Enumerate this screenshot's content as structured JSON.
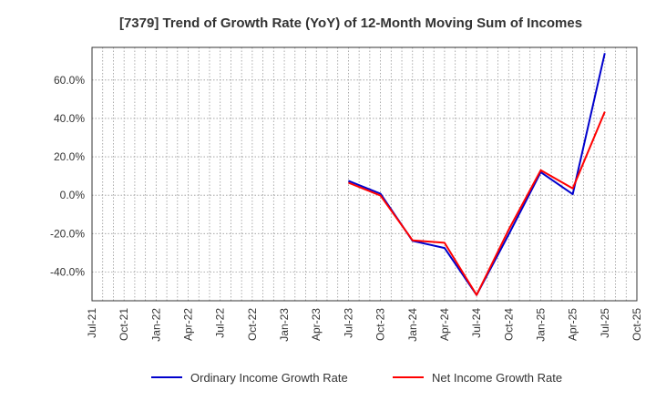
{
  "chart_data": {
    "type": "line",
    "title": "[7379]  Trend of Growth Rate (YoY) of 12-Month Moving Sum of Incomes",
    "xlabel": "",
    "ylabel": "",
    "x_ticks": [
      "Jul-21",
      "Oct-21",
      "Jan-22",
      "Apr-22",
      "Jul-22",
      "Oct-22",
      "Jan-23",
      "Apr-23",
      "Jul-23",
      "Oct-23",
      "Jan-24",
      "Apr-24",
      "Jul-24",
      "Oct-24",
      "Jan-25",
      "Apr-25",
      "Jul-25",
      "Oct-25"
    ],
    "y_ticks": [
      "-40.0%",
      "-20.0%",
      "0.0%",
      "20.0%",
      "40.0%",
      "60.0%"
    ],
    "y_tick_values": [
      -40,
      -20,
      0,
      20,
      40,
      60
    ],
    "ylim": [
      -55,
      77
    ],
    "xlim": [
      "2021-07",
      "2025-10"
    ],
    "grid": true,
    "legend_position": "bottom",
    "x": [
      "2023-07",
      "2023-10",
      "2024-01",
      "2024-04",
      "2024-07",
      "2024-10",
      "2025-01",
      "2025-04",
      "2025-07"
    ],
    "series": [
      {
        "name": "Ordinary Income Growth Rate",
        "color": "#0000cc",
        "x": [
          "2023-07",
          "2023-08",
          "2023-09",
          "2023-10",
          "2023-11",
          "2023-12",
          "2024-01",
          "2024-02",
          "2024-03",
          "2024-04",
          "2024-05",
          "2024-06",
          "2024-07",
          "2024-08",
          "2024-09",
          "2024-10",
          "2024-11",
          "2024-12",
          "2025-01",
          "2025-02",
          "2025-03",
          "2025-04",
          "2025-05",
          "2025-06",
          "2025-07"
        ],
        "values": [
          7.5,
          null,
          null,
          0.8,
          null,
          null,
          -23.8,
          null,
          null,
          -27.5,
          null,
          null,
          -52.0,
          null,
          null,
          -20.5,
          null,
          null,
          12.0,
          null,
          null,
          0.5,
          null,
          null,
          74.0
        ]
      },
      {
        "name": "Net Income Growth Rate",
        "color": "#ff0000",
        "x": [
          "2023-07",
          "2023-08",
          "2023-09",
          "2023-10",
          "2023-11",
          "2023-12",
          "2024-01",
          "2024-02",
          "2024-03",
          "2024-04",
          "2024-05",
          "2024-06",
          "2024-07",
          "2024-08",
          "2024-09",
          "2024-10",
          "2024-11",
          "2024-12",
          "2025-01",
          "2025-02",
          "2025-03",
          "2025-04",
          "2025-05",
          "2025-06",
          "2025-07"
        ],
        "values": [
          6.5,
          null,
          null,
          -0.2,
          null,
          null,
          -23.5,
          null,
          null,
          -24.8,
          null,
          null,
          -52.0,
          null,
          null,
          -18.0,
          null,
          null,
          13.0,
          null,
          null,
          3.5,
          null,
          null,
          43.5
        ]
      }
    ]
  }
}
